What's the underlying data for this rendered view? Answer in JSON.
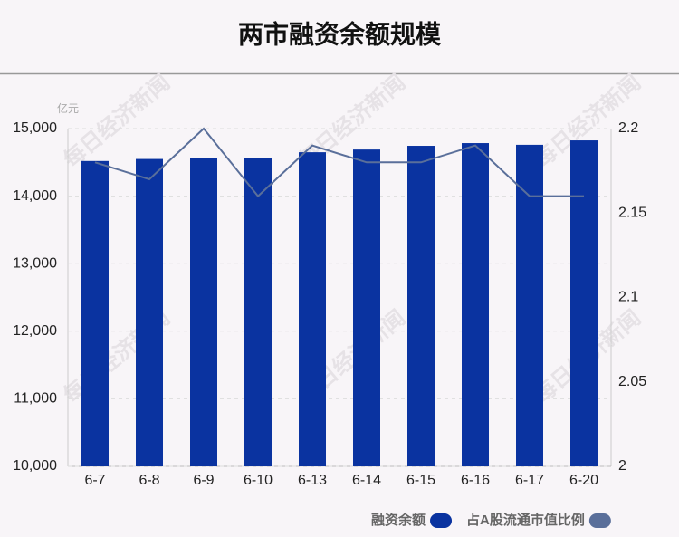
{
  "chart_data": {
    "type": "bar-line",
    "title": "两市融资余额规模",
    "y_unit": "亿元",
    "watermark": "每日经济新闻",
    "categories": [
      "6-7",
      "6-8",
      "6-9",
      "6-10",
      "6-13",
      "6-14",
      "6-15",
      "6-16",
      "6-17",
      "6-20"
    ],
    "series": [
      {
        "name": "融资余额",
        "type": "bar",
        "color": "#0a33a0",
        "values": [
          14520,
          14550,
          14570,
          14560,
          14650,
          14690,
          14745,
          14785,
          14760,
          14825
        ]
      },
      {
        "name": "占A股流通市值比例",
        "type": "line",
        "axis": "y2",
        "color": "#5a6f9a",
        "values": [
          2.18,
          2.17,
          2.2,
          2.16,
          2.19,
          2.18,
          2.18,
          2.19,
          2.16,
          2.16
        ]
      }
    ],
    "ylim": [
      10000,
      15000
    ],
    "yticks": [
      {
        "value": 10000,
        "label": "10,000"
      },
      {
        "value": 11000,
        "label": "11,000"
      },
      {
        "value": 12000,
        "label": "12,000"
      },
      {
        "value": 13000,
        "label": "13,000"
      },
      {
        "value": 14000,
        "label": "14,000"
      },
      {
        "value": 15000,
        "label": "15,000"
      }
    ],
    "y2lim": [
      2,
      2.2
    ],
    "y2ticks": [
      2,
      2.05,
      2.1,
      2.15,
      2.2
    ],
    "grid": true
  }
}
